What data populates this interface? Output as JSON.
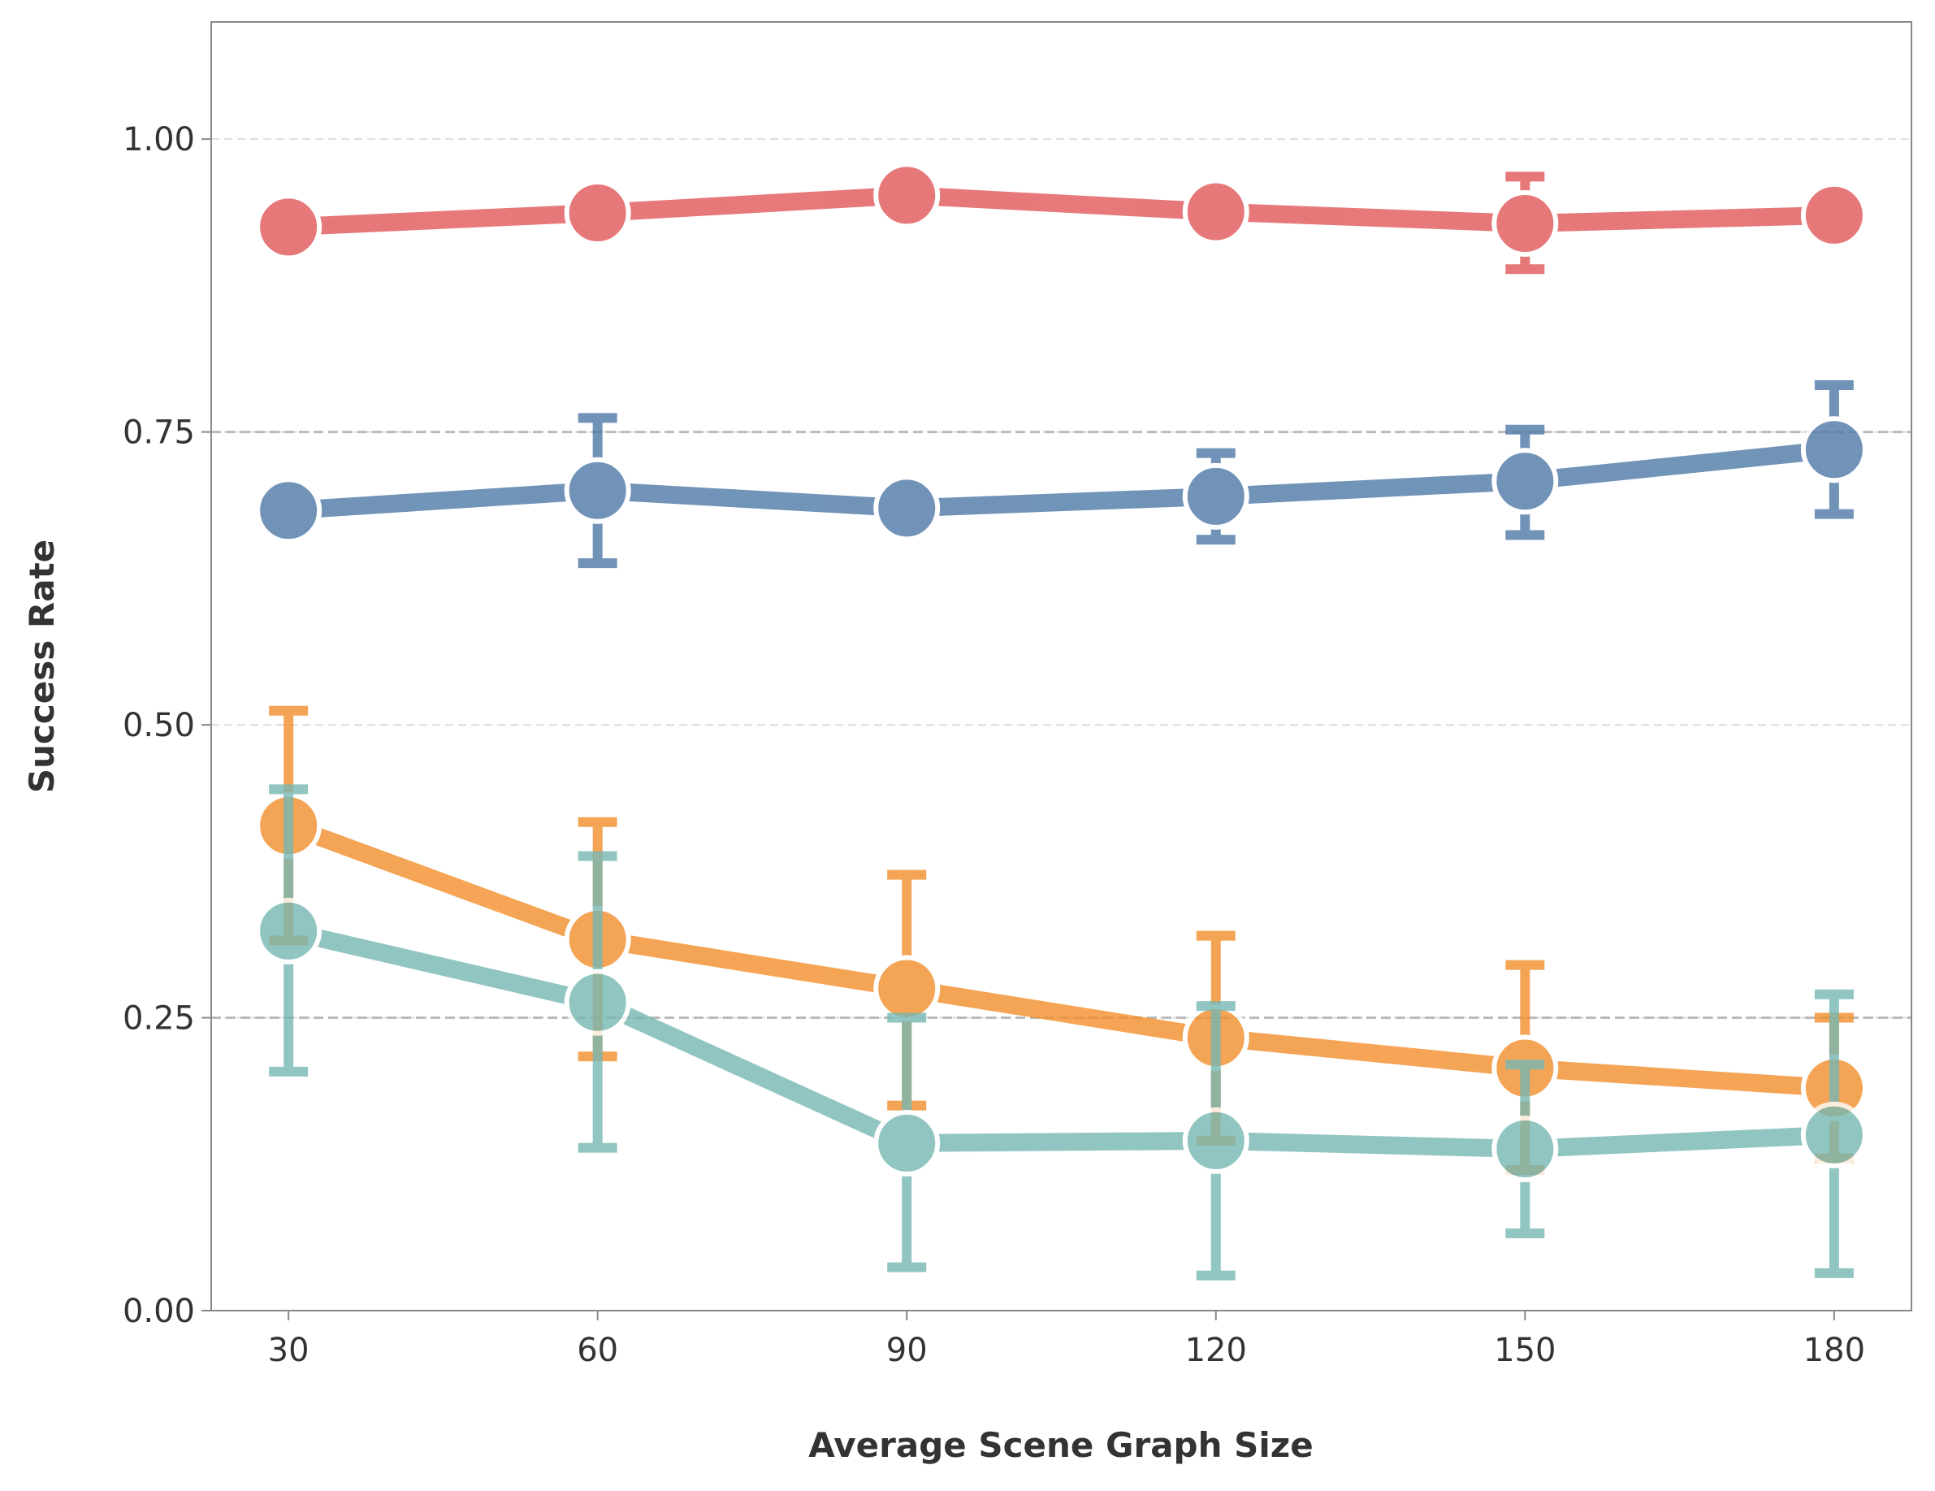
{
  "chart_data": {
    "type": "line",
    "title": "",
    "xlabel": "Average Scene Graph Size",
    "ylabel": "Success Rate",
    "x": [
      30,
      60,
      90,
      120,
      150,
      180
    ],
    "xlim": [
      22.5,
      187.5
    ],
    "ylim": [
      0,
      1.1
    ],
    "xticks": [
      "30",
      "60",
      "90",
      "120",
      "150",
      "180"
    ],
    "yticks": [
      "0.00",
      "0.25",
      "0.50",
      "0.75",
      "1.00"
    ],
    "grid": "horizontal dashed",
    "reference_lines": [
      0.25,
      0.75
    ],
    "error_bars": true,
    "series": [
      {
        "color": "#e15759",
        "values": [
          0.925,
          0.937,
          0.952,
          0.938,
          0.928,
          0.935
        ],
        "err_low": [
          0.91,
          0.922,
          0.94,
          0.924,
          0.889,
          0.92
        ],
        "err_high": [
          0.94,
          0.952,
          0.964,
          0.952,
          0.968,
          0.95
        ]
      },
      {
        "color": "#4e79a7",
        "values": [
          0.683,
          0.7,
          0.685,
          0.695,
          0.708,
          0.735
        ],
        "err_low": [
          0.668,
          0.638,
          0.67,
          0.658,
          0.662,
          0.68
        ],
        "err_high": [
          0.698,
          0.762,
          0.7,
          0.732,
          0.752,
          0.79
        ]
      },
      {
        "color": "#f28e2b",
        "values": [
          0.414,
          0.317,
          0.275,
          0.233,
          0.207,
          0.19
        ],
        "err_low": [
          0.316,
          0.217,
          0.175,
          0.145,
          0.12,
          0.13
        ],
        "err_high": [
          0.512,
          0.417,
          0.372,
          0.32,
          0.295,
          0.25
        ]
      },
      {
        "color": "#76b7b2",
        "values": [
          0.324,
          0.263,
          0.143,
          0.145,
          0.138,
          0.15
        ],
        "err_low": [
          0.204,
          0.139,
          0.037,
          0.03,
          0.066,
          0.032
        ],
        "err_high": [
          0.445,
          0.388,
          0.25,
          0.26,
          0.21,
          0.27
        ]
      }
    ]
  }
}
